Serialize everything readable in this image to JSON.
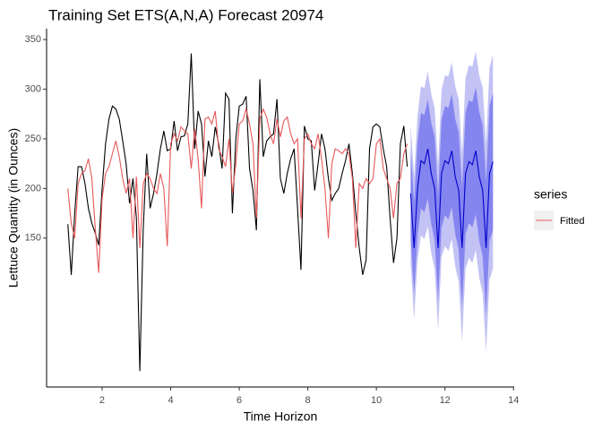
{
  "chart_data": {
    "type": "line",
    "title": "Training Set ETS(A,N,A) Forecast 20974",
    "x_label": "Time Horizon",
    "y_label": "Lettuce Quantity (in Ounces)",
    "legend_title": "series",
    "xlim": [
      0.38,
      14.02
    ],
    "ylim": [
      0,
      361
    ],
    "xticks": [
      2,
      4,
      6,
      8,
      10,
      12,
      14
    ],
    "yticks": [
      150,
      200,
      250,
      300,
      350
    ],
    "x": [
      1.0,
      1.1,
      1.2,
      1.3,
      1.4,
      1.5,
      1.6,
      1.7,
      1.8,
      1.9,
      2.0,
      2.1,
      2.2,
      2.3,
      2.4,
      2.5,
      2.6,
      2.7,
      2.8,
      2.9,
      3.0,
      3.1,
      3.2,
      3.3,
      3.4,
      3.5,
      3.6,
      3.7,
      3.8,
      3.9,
      4.0,
      4.1,
      4.2,
      4.3,
      4.4,
      4.5,
      4.6,
      4.7,
      4.8,
      4.9,
      5.0,
      5.1,
      5.2,
      5.3,
      5.4,
      5.5,
      5.6,
      5.7,
      5.8,
      5.9,
      6.0,
      6.1,
      6.2,
      6.3,
      6.4,
      6.5,
      6.6,
      6.7,
      6.8,
      6.9,
      7.0,
      7.1,
      7.2,
      7.3,
      7.4,
      7.5,
      7.6,
      7.7,
      7.8,
      7.9,
      8.0,
      8.1,
      8.2,
      8.3,
      8.4,
      8.5,
      8.6,
      8.7,
      8.8,
      8.9,
      9.0,
      9.1,
      9.2,
      9.3,
      9.4,
      9.5,
      9.6,
      9.7,
      9.8,
      9.9,
      10.0,
      10.1,
      10.2,
      10.3,
      10.4,
      10.5,
      10.6,
      10.7,
      10.8,
      10.9
    ],
    "series": [
      {
        "color": "#000000",
        "values": [
          164,
          113,
          175,
          222,
          222,
          205,
          180,
          165,
          155,
          143,
          200,
          245,
          270,
          283,
          280,
          270,
          248,
          225,
          185,
          210,
          170,
          16,
          160,
          235,
          180,
          195,
          215,
          240,
          258,
          238,
          240,
          268,
          238,
          252,
          253,
          265,
          336,
          240,
          278,
          265,
          212,
          248,
          232,
          262,
          245,
          220,
          296,
          290,
          175,
          250,
          283,
          285,
          293,
          220,
          198,
          158,
          310,
          232,
          248,
          252,
          255,
          290,
          210,
          195,
          215,
          230,
          240,
          180,
          118,
          263,
          250,
          248,
          198,
          225,
          255,
          240,
          210,
          188,
          195,
          200,
          215,
          228,
          245,
          215,
          175,
          140,
          113,
          128,
          240,
          262,
          265,
          262,
          240,
          222,
          170,
          125,
          150,
          245,
          263,
          222
        ]
      },
      {
        "name": "Fitted",
        "color": "#e8595a",
        "values": [
          200,
          165,
          150,
          205,
          215,
          218,
          230,
          210,
          160,
          115,
          190,
          215,
          222,
          235,
          248,
          232,
          210,
          195,
          210,
          150,
          212,
          140,
          205,
          215,
          210,
          200,
          195,
          215,
          200,
          142,
          245,
          255,
          248,
          262,
          258,
          255,
          220,
          260,
          230,
          180,
          270,
          272,
          265,
          278,
          240,
          232,
          222,
          250,
          195,
          225,
          265,
          268,
          280,
          265,
          245,
          170,
          270,
          280,
          272,
          255,
          245,
          270,
          252,
          268,
          272,
          255,
          245,
          250,
          170,
          250,
          255,
          245,
          240,
          255,
          230,
          200,
          150,
          225,
          240,
          238,
          235,
          240,
          235,
          210,
          140,
          205,
          200,
          210,
          205,
          210,
          245,
          250,
          220,
          210,
          200,
          170,
          205,
          210,
          235,
          245
        ]
      }
    ],
    "forecast": {
      "x": [
        11.0,
        11.1,
        11.2,
        11.3,
        11.4,
        11.5,
        11.6,
        11.7,
        11.8,
        11.9,
        12.0,
        12.1,
        12.2,
        12.3,
        12.4,
        12.5,
        12.6,
        12.7,
        12.8,
        12.9,
        13.0,
        13.1,
        13.2,
        13.3,
        13.4
      ],
      "mean": [
        195,
        140,
        200,
        228,
        225,
        240,
        215,
        200,
        140,
        215,
        228,
        225,
        238,
        212,
        198,
        140,
        215,
        227,
        224,
        238,
        212,
        198,
        140,
        215,
        227
      ],
      "lo80": [
        150,
        94,
        153,
        180,
        176,
        190,
        164,
        148,
        87,
        161,
        173,
        169,
        181,
        154,
        139,
        80,
        154,
        165,
        161,
        174,
        147,
        132,
        73,
        147,
        158
      ],
      "hi80": [
        240,
        186,
        247,
        276,
        274,
        290,
        266,
        252,
        193,
        269,
        283,
        281,
        295,
        270,
        257,
        200,
        276,
        289,
        287,
        302,
        277,
        264,
        207,
        283,
        296
      ],
      "lo95": [
        125,
        68,
        127,
        153,
        149,
        162,
        135,
        119,
        57,
        131,
        142,
        137,
        149,
        121,
        106,
        46,
        119,
        130,
        125,
        138,
        110,
        94,
        35,
        108,
        119
      ],
      "hi95": [
        265,
        212,
        273,
        303,
        301,
        318,
        295,
        281,
        223,
        299,
        314,
        313,
        327,
        303,
        290,
        234,
        311,
        324,
        323,
        338,
        314,
        302,
        245,
        322,
        335
      ],
      "color": "#0000cc",
      "color80": "#8585ef",
      "color95": "#c2c2f5"
    }
  }
}
